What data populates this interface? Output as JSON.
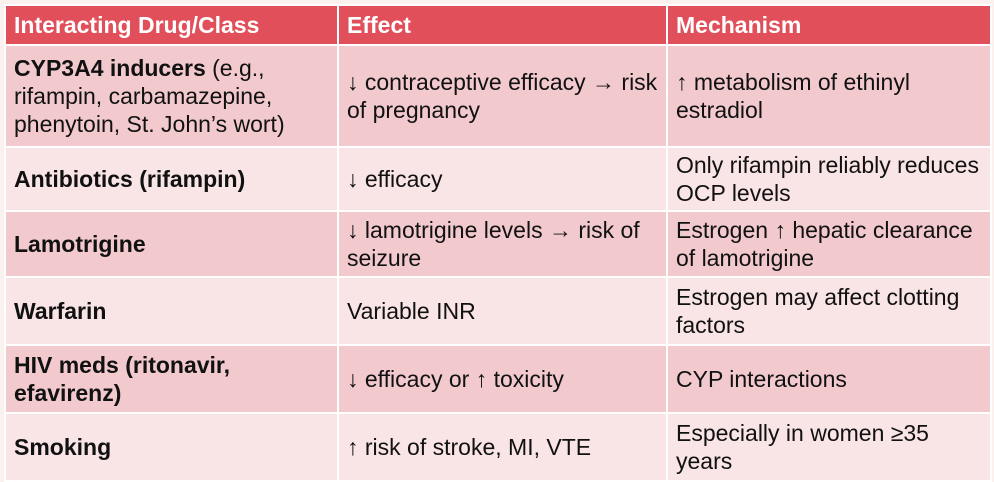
{
  "table": {
    "headers": [
      "Interacting Drug/Class",
      "Effect",
      "Mechanism"
    ],
    "rows": [
      {
        "drug_bold": "CYP3A4 inducers",
        "drug_rest": " (e.g., rifampin, carbamazepine, phenytoin, St. John’s wort)",
        "effect": "↓ contraceptive efficacy → risk of pregnancy",
        "mechanism": "↑ metabolism of ethinyl estradiol"
      },
      {
        "drug_bold": "Antibiotics (rifampin)",
        "drug_rest": "",
        "effect": "↓ efficacy",
        "mechanism": "Only rifampin reliably reduces OCP levels"
      },
      {
        "drug_bold": "Lamotrigine",
        "drug_rest": "",
        "effect": "↓ lamotrigine levels → risk of seizure",
        "mechanism": "Estrogen ↑ hepatic clearance of lamotrigine"
      },
      {
        "drug_bold": "Warfarin",
        "drug_rest": "",
        "effect": "Variable INR",
        "mechanism": "Estrogen may affect clotting factors"
      },
      {
        "drug_bold": "HIV meds (ritonavir, efavirenz)",
        "drug_rest": "",
        "effect": "↓ efficacy or ↑ toxicity",
        "mechanism": "CYP interactions"
      },
      {
        "drug_bold": "Smoking",
        "drug_rest": "",
        "effect": "↑ risk of stroke, MI, VTE",
        "mechanism": "Especially in women ≥35 years"
      }
    ]
  },
  "colors": {
    "header_bg": "#e1505a",
    "row_dark": "#f2c9cd",
    "row_light": "#f9e4e6",
    "slide_bg": "#fbf1ee"
  }
}
